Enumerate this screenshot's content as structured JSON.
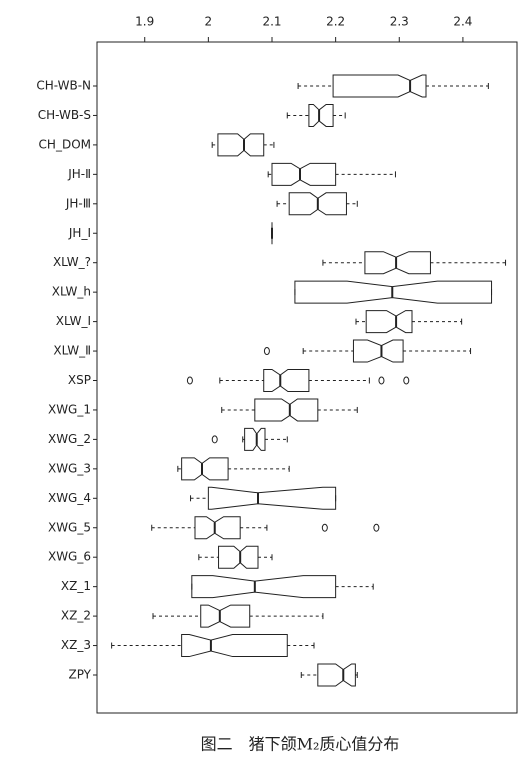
{
  "chart_data": {
    "type": "boxplot",
    "caption": "图二　猪下颌M₂质心值分布",
    "xlim": [
      1.825,
      2.485
    ],
    "xticks": [
      1.9,
      2.0,
      2.1,
      2.2,
      2.3,
      2.4
    ],
    "color": "#222222",
    "categories": [
      "CH-WB-N",
      "CH-WB-S",
      "CH_DOM",
      "JH-Ⅱ",
      "JH-Ⅲ",
      "JH_Ⅰ",
      "XLW_?",
      "XLW_h",
      "XLW_Ⅰ",
      "XLW_Ⅱ",
      "XSP",
      "XWG_1",
      "XWG_2",
      "XWG_3",
      "XWG_4",
      "XWG_5",
      "XWG_6",
      "XZ_1",
      "XZ_2",
      "XZ_3",
      "ZPY"
    ],
    "boxes": [
      {
        "low": 2.141,
        "q1": 2.196,
        "median": 2.317,
        "q3": 2.342,
        "high": 2.44,
        "notch": [
          2.298,
          2.336
        ],
        "outliers": []
      },
      {
        "low": 2.124,
        "q1": 2.158,
        "median": 2.174,
        "q3": 2.196,
        "high": 2.215,
        "notch": [
          2.165,
          2.185
        ],
        "outliers": []
      },
      {
        "low": 2.006,
        "q1": 2.015,
        "median": 2.056,
        "q3": 2.087,
        "high": 2.103,
        "notch": [
          2.046,
          2.066
        ],
        "outliers": []
      },
      {
        "low": 2.094,
        "q1": 2.1,
        "median": 2.144,
        "q3": 2.2,
        "high": 2.294,
        "notch": [
          2.13,
          2.16
        ],
        "outliers": []
      },
      {
        "low": 2.108,
        "q1": 2.127,
        "median": 2.172,
        "q3": 2.217,
        "high": 2.234,
        "notch": [
          2.16,
          2.185
        ],
        "outliers": []
      },
      {
        "low": 2.1,
        "q1": 2.1,
        "median": 2.1,
        "q3": 2.1,
        "high": 2.1,
        "notch": [
          2.1,
          2.1
        ],
        "outliers": []
      },
      {
        "low": 2.18,
        "q1": 2.246,
        "median": 2.295,
        "q3": 2.349,
        "high": 2.467,
        "notch": [
          2.275,
          2.315
        ],
        "outliers": []
      },
      {
        "low": 2.136,
        "q1": 2.136,
        "median": 2.289,
        "q3": 2.445,
        "high": 2.445,
        "notch": [
          2.218,
          2.36
        ],
        "outliers": []
      },
      {
        "low": 2.232,
        "q1": 2.248,
        "median": 2.295,
        "q3": 2.32,
        "high": 2.398,
        "notch": [
          2.28,
          2.31
        ],
        "outliers": []
      },
      {
        "low": 2.149,
        "q1": 2.228,
        "median": 2.272,
        "q3": 2.306,
        "high": 2.412,
        "notch": [
          2.25,
          2.29
        ],
        "outliers": [
          2.092
        ]
      },
      {
        "low": 2.018,
        "q1": 2.087,
        "median": 2.113,
        "q3": 2.158,
        "high": 2.253,
        "notch": [
          2.1,
          2.125
        ],
        "outliers": [
          1.971,
          2.272,
          2.311
        ]
      },
      {
        "low": 2.021,
        "q1": 2.073,
        "median": 2.128,
        "q3": 2.172,
        "high": 2.234,
        "notch": [
          2.115,
          2.14
        ],
        "outliers": []
      },
      {
        "low": 2.054,
        "q1": 2.057,
        "median": 2.076,
        "q3": 2.089,
        "high": 2.124,
        "notch": [
          2.07,
          2.083
        ],
        "outliers": [
          2.01
        ]
      },
      {
        "low": 1.952,
        "q1": 1.958,
        "median": 1.99,
        "q3": 2.031,
        "high": 2.127,
        "notch": [
          1.978,
          2.002
        ],
        "outliers": []
      },
      {
        "low": 1.972,
        "q1": 2.0,
        "median": 2.078,
        "q3": 2.2,
        "high": 2.2,
        "notch": [
          2.005,
          2.18
        ],
        "outliers": []
      },
      {
        "low": 1.911,
        "q1": 1.979,
        "median": 2.01,
        "q3": 2.05,
        "high": 2.092,
        "notch": [
          1.997,
          2.024
        ],
        "outliers": [
          2.183,
          2.264
        ]
      },
      {
        "low": 1.985,
        "q1": 2.016,
        "median": 2.05,
        "q3": 2.078,
        "high": 2.1,
        "notch": [
          2.04,
          2.06
        ],
        "outliers": []
      },
      {
        "low": 1.974,
        "q1": 1.974,
        "median": 2.073,
        "q3": 2.2,
        "high": 2.259,
        "notch": [
          2.007,
          2.149
        ],
        "outliers": []
      },
      {
        "low": 1.913,
        "q1": 1.988,
        "median": 2.018,
        "q3": 2.065,
        "high": 2.18,
        "notch": [
          2.0,
          2.035
        ],
        "outliers": []
      },
      {
        "low": 1.848,
        "q1": 1.958,
        "median": 2.004,
        "q3": 2.124,
        "high": 2.166,
        "notch": [
          1.97,
          2.038
        ],
        "outliers": []
      },
      {
        "low": 2.146,
        "q1": 2.172,
        "median": 2.212,
        "q3": 2.231,
        "high": 2.234,
        "notch": [
          2.2,
          2.225
        ],
        "outliers": []
      }
    ]
  }
}
